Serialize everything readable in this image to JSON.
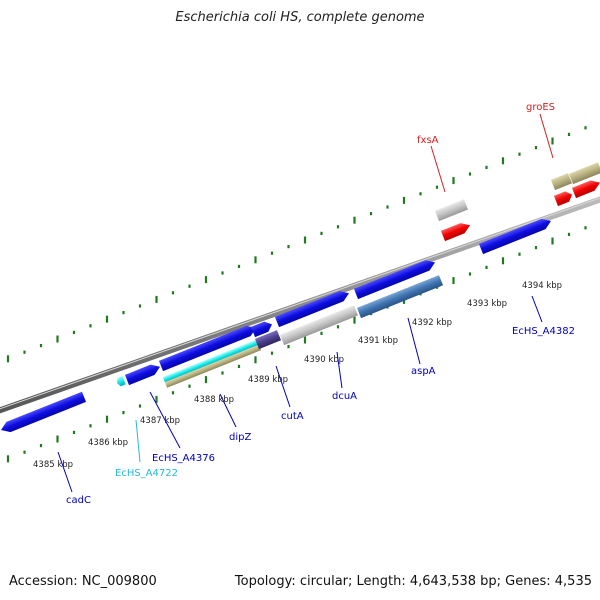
{
  "title": "Escherichia coli HS, complete genome",
  "footer": {
    "accession": "Accession: NC_009800",
    "summary": "Topology: circular; Length: 4,643,538 bp; Genes: 4,535"
  },
  "scale_labels": [
    "4385 kbp",
    "4386 kbp",
    "4387 kbp",
    "4388 kbp",
    "4389 kbp",
    "4390 kbp",
    "4391 kbp",
    "4392 kbp",
    "4393 kbp",
    "4394 kbp"
  ],
  "gene_labels": [
    {
      "name": "groES",
      "color": "#d42020"
    },
    {
      "name": "fxsA",
      "color": "#d42020"
    },
    {
      "name": "EcHS_A4382",
      "color": "#0000bb"
    },
    {
      "name": "aspA",
      "color": "#0000bb"
    },
    {
      "name": "dcuA",
      "color": "#0000bb"
    },
    {
      "name": "cutA",
      "color": "#0000bb"
    },
    {
      "name": "dipZ",
      "color": "#0000bb"
    },
    {
      "name": "EcHS_A4376",
      "color": "#0000bb"
    },
    {
      "name": "EcHS_A4722",
      "color": "#22bbdd"
    },
    {
      "name": "cadC",
      "color": "#0000bb"
    }
  ],
  "colors": {
    "backbone": "#8a8a8a",
    "ticks": "#1f7a1f",
    "gene_blue": "#1010d8",
    "gene_red": "#ee0f0f",
    "gene_grey": "#c4c4c4",
    "gene_khaki": "#b8b080",
    "gene_cyan": "#18e8e8",
    "gene_steelblue": "#3f74b0",
    "gene_slate": "#4a3f8a"
  }
}
